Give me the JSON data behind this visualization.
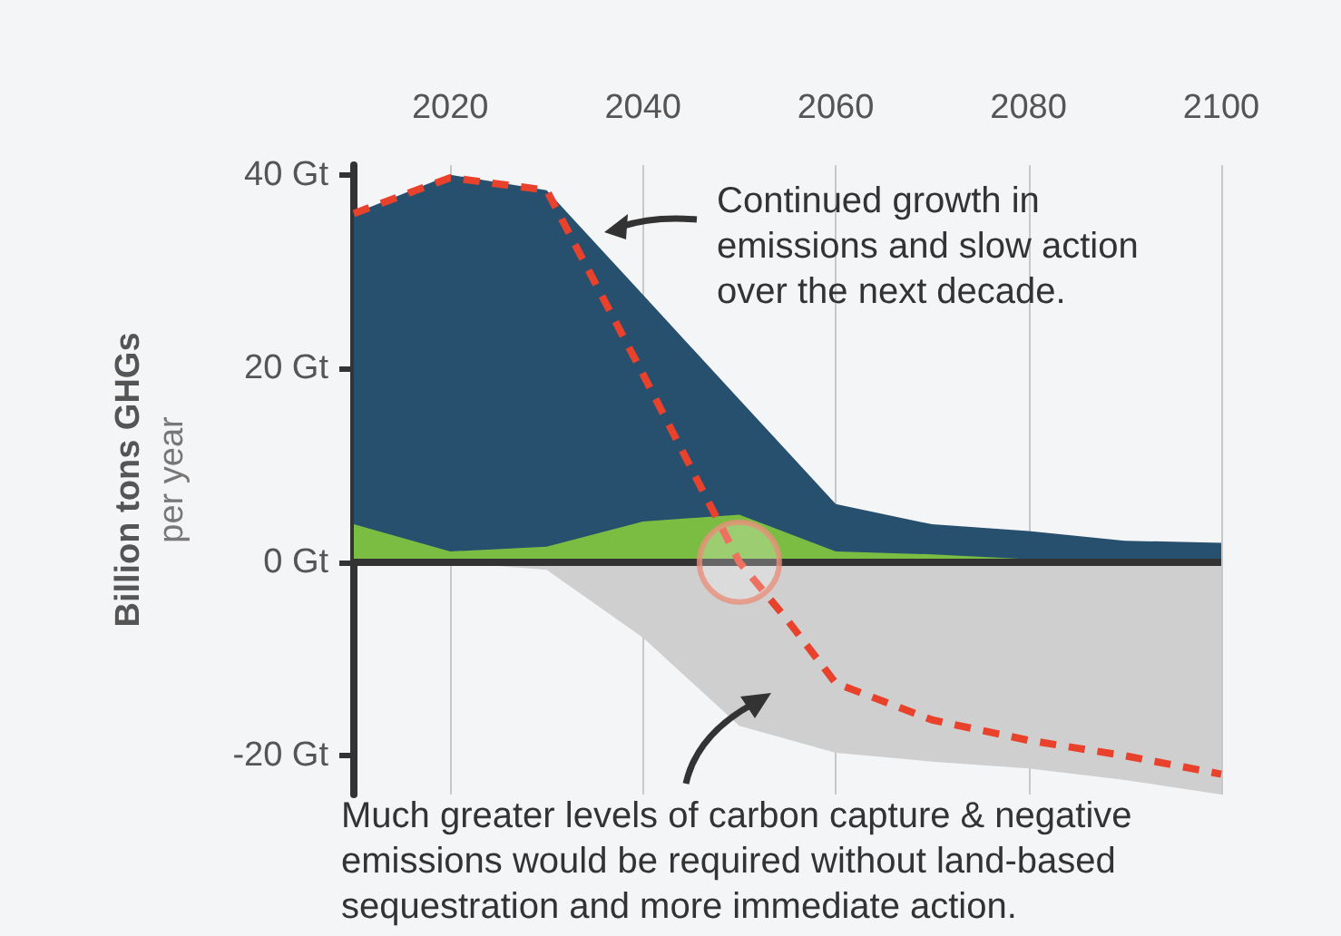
{
  "chart_data": {
    "type": "area",
    "ylabel": "Billion tons GHGs\nper year",
    "x": [
      2010,
      2020,
      2030,
      2040,
      2050,
      2060,
      2070,
      2080,
      2090,
      2100
    ],
    "series": [
      {
        "color": "#27506e",
        "values": [
          36,
          40,
          38.4,
          27.6,
          16.8,
          6,
          3.9,
          3.2,
          2.2,
          2
        ]
      },
      {
        "color": "#7bbd42",
        "values": [
          3.9,
          1.1,
          1.6,
          4.2,
          4.9,
          1.1,
          0.8,
          0.3,
          0,
          -1.6
        ]
      },
      {
        "color": "#cfcfcf",
        "values": [
          0,
          0,
          -0.8,
          -7.8,
          -16.9,
          -19.7,
          -20.6,
          -21.3,
          -22.5,
          -24
        ]
      },
      {
        "type": "line",
        "color": "#e8412c",
        "line_style": "dashed",
        "x": [
          2010,
          2020,
          2030,
          2040,
          2050,
          2055,
          2060,
          2070,
          2080,
          2090,
          2100
        ],
        "values": [
          36,
          39.7,
          38.4,
          19.4,
          0,
          -6,
          -12.5,
          -16.3,
          -18.4,
          -20,
          -21.9
        ]
      }
    ],
    "xlim": [
      2010,
      2100
    ],
    "xticks": [
      2020,
      2040,
      2060,
      2080,
      2100
    ],
    "ylim": [
      -24,
      41
    ],
    "yticks": [
      {
        "value": 40,
        "label": "40 Gt"
      },
      {
        "value": 20,
        "label": "20 Gt"
      },
      {
        "value": 0,
        "label": "0 Gt"
      },
      {
        "value": -20,
        "label": "-20 Gt"
      }
    ],
    "grid": "x",
    "ref_lines": [
      {
        "axis": "y",
        "value": 0,
        "color": "#333333"
      }
    ],
    "annotations": [
      "Continued growth in emissions and slow action over the next decade.",
      "Much greater levels of carbon capture & negative emissions would be required without land-based sequestration and more immediate action."
    ]
  }
}
